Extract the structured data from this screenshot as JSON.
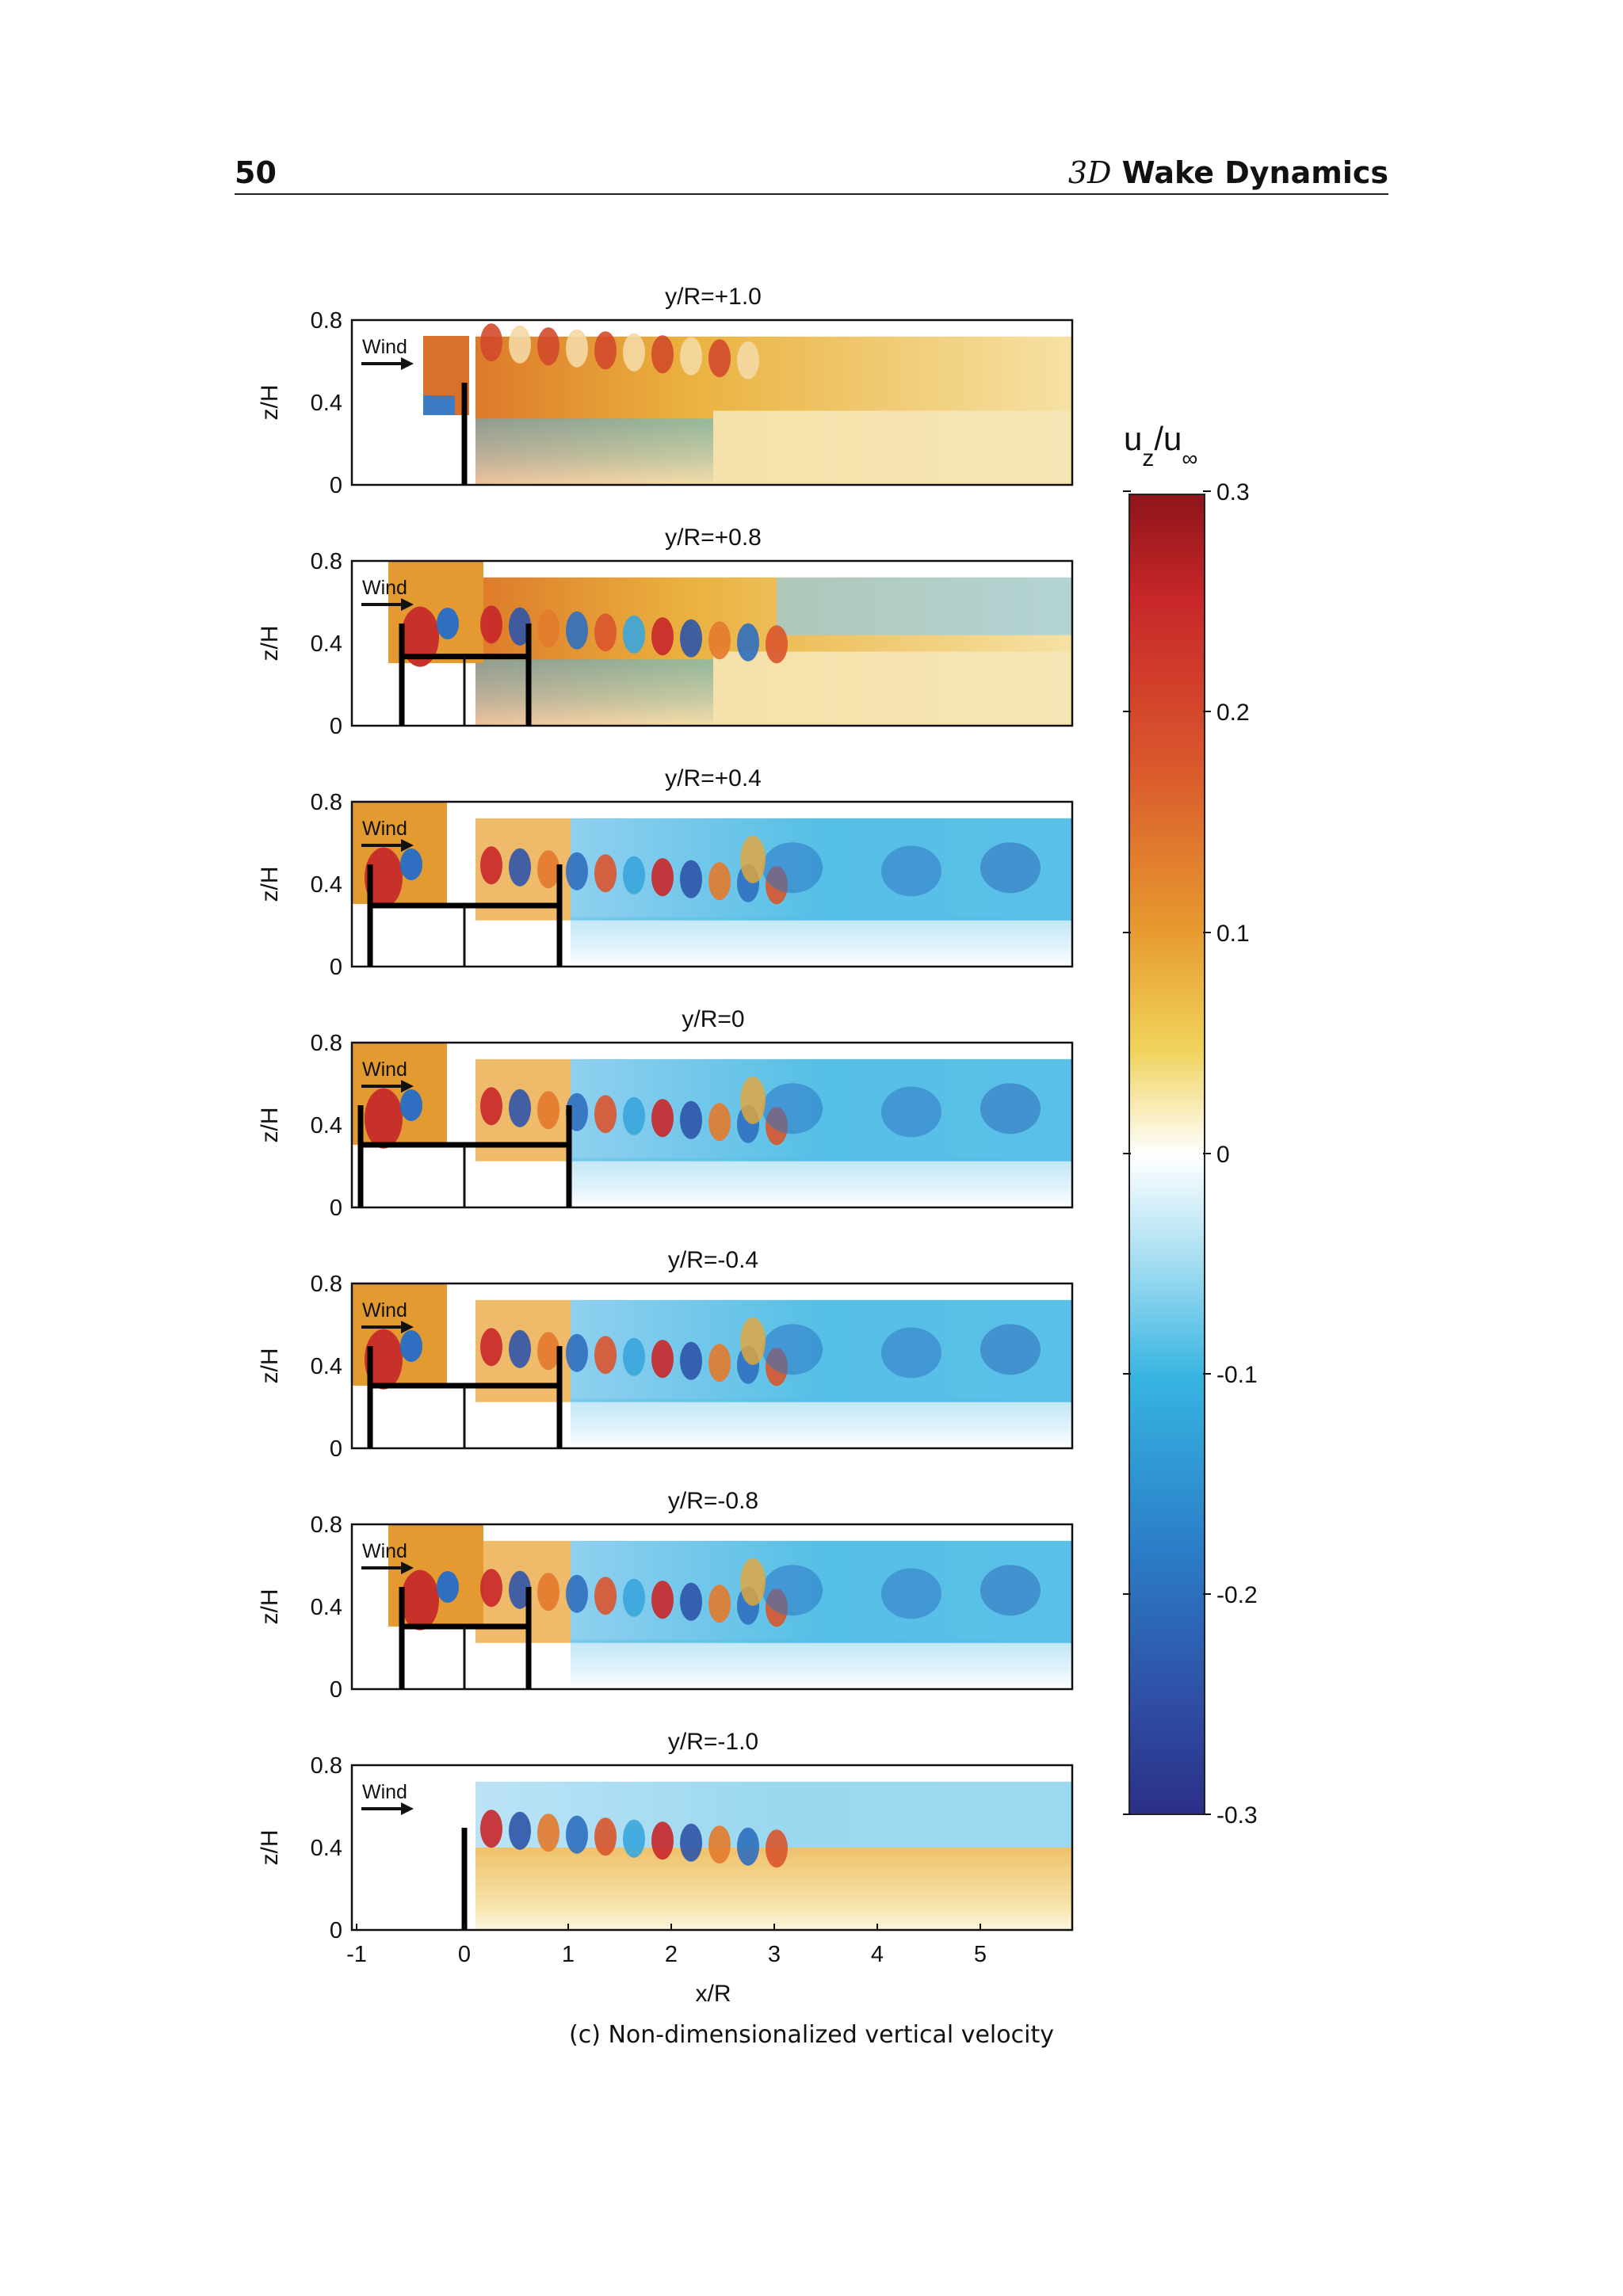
{
  "header": {
    "page_number": "50",
    "title_math": "3D",
    "title_text": "Wake Dynamics"
  },
  "caption": "(c) Non-dimensionalized vertical velocity",
  "panel_wind_label": "Wind",
  "axis": {
    "ylabel": "z/H",
    "xlabel": "x/R",
    "yticks": [
      "0",
      "0.4",
      "0.8"
    ],
    "xticks": [
      "-1",
      "0",
      "1",
      "2",
      "3",
      "4",
      "5"
    ]
  },
  "colorbar": {
    "label_main": "u",
    "label_sub1": "z",
    "label_slash": "/u",
    "label_sub2": "∞",
    "ticks": [
      "0.3",
      "0.2",
      "0.1",
      "0",
      "-0.1",
      "-0.2",
      "-0.3"
    ],
    "colors": {
      "max": "#9e1b1f",
      "high": "#e06a2a",
      "mid_high": "#e8b62c",
      "zero": "#ffffff",
      "mid_low": "#39b5e2",
      "low": "#2d3b95"
    }
  },
  "panels": [
    {
      "title": "y/R=+1.0"
    },
    {
      "title": "y/R=+0.8"
    },
    {
      "title": "y/R=+0.4"
    },
    {
      "title": "y/R=0"
    },
    {
      "title": "y/R=-0.4"
    },
    {
      "title": "y/R=-0.8"
    },
    {
      "title": "y/R=-1.0"
    }
  ]
}
